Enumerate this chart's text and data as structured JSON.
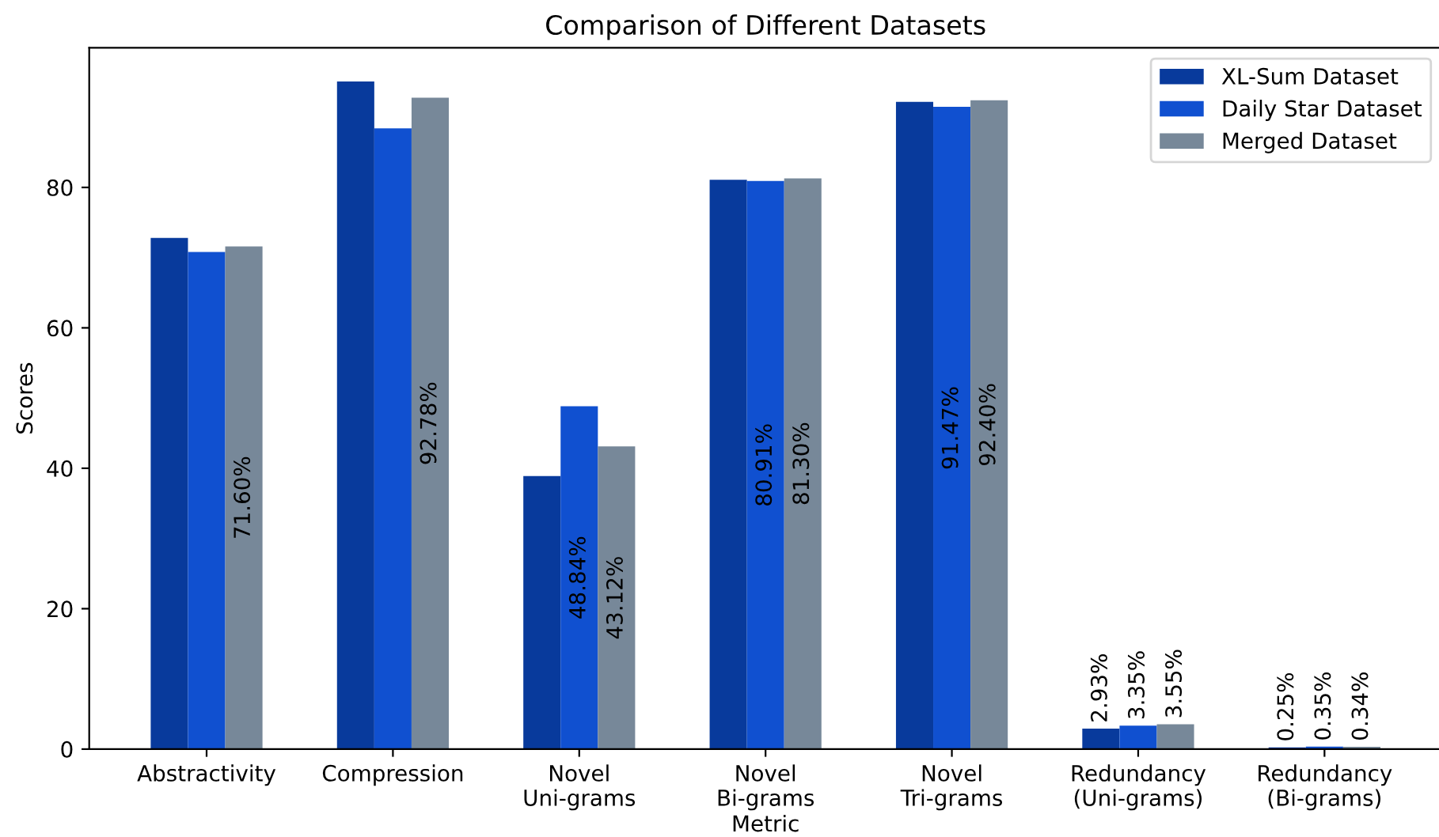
{
  "chart_data": {
    "type": "bar",
    "title": "Comparison of Different Datasets",
    "xlabel": "Metric",
    "ylabel": "Scores",
    "categories": [
      "Abstractivity",
      "Compression",
      "Novel\nUni-grams",
      "Novel\nBi-grams",
      "Novel\nTri-grams",
      "Redundancy\n(Uni-grams)",
      "Redundancy\n(Bi-grams)"
    ],
    "series": [
      {
        "name": "XL-Sum Dataset",
        "color": "#083a9c",
        "values": [
          72.8,
          95.1,
          38.9,
          81.1,
          92.2,
          2.93,
          0.25
        ],
        "value_labels": [
          null,
          null,
          null,
          null,
          null,
          "2.93%",
          "0.25%"
        ]
      },
      {
        "name": "Daily Star Dataset",
        "color": "#1050d0",
        "values": [
          70.8,
          88.4,
          48.84,
          80.91,
          91.47,
          3.35,
          0.35
        ],
        "value_labels": [
          null,
          null,
          "48.84%",
          "80.91%",
          "91.47%",
          "3.35%",
          "0.35%"
        ]
      },
      {
        "name": "Merged Dataset",
        "color": "#778899",
        "values": [
          71.6,
          92.78,
          43.12,
          81.3,
          92.4,
          3.55,
          0.34
        ],
        "value_labels": [
          "71.60%",
          "92.78%",
          "43.12%",
          "81.30%",
          "92.40%",
          "3.55%",
          "0.34%"
        ]
      }
    ],
    "ylim": [
      0,
      99.9
    ],
    "yticks": [
      0,
      20,
      40,
      60,
      80
    ],
    "legend": "top right",
    "grid": false
  }
}
